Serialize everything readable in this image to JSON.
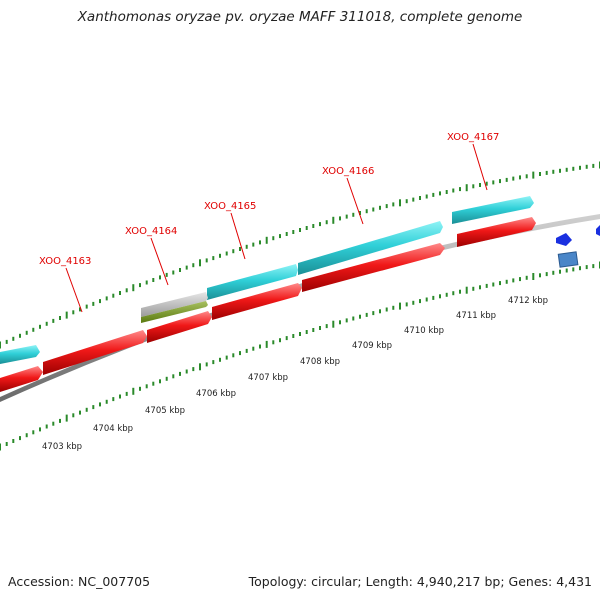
{
  "title": "Xanthomonas oryzae pv. oryzae MAFF 311018, complete genome",
  "footer": {
    "accession": "Accession: NC_007705",
    "summary": "Topology: circular; Length: 4,940,217 bp; Genes: 4,431"
  },
  "colors": {
    "forward_strand": "#30d0d8",
    "reverse_strand": "#f01818",
    "backbone": "#888888",
    "tick": "#2a8a2a",
    "label": "#e00000",
    "blue_feature": "#1a30e0"
  },
  "gene_labels": [
    "XOO_4163",
    "XOO_4164",
    "XOO_4165",
    "XOO_4166",
    "XOO_4167"
  ],
  "kbp_ticks": [
    "4703 kbp",
    "4704 kbp",
    "4705 kbp",
    "4706 kbp",
    "4707 kbp",
    "4708 kbp",
    "4709 kbp",
    "4710 kbp",
    "4711 kbp",
    "4712 kbp"
  ]
}
